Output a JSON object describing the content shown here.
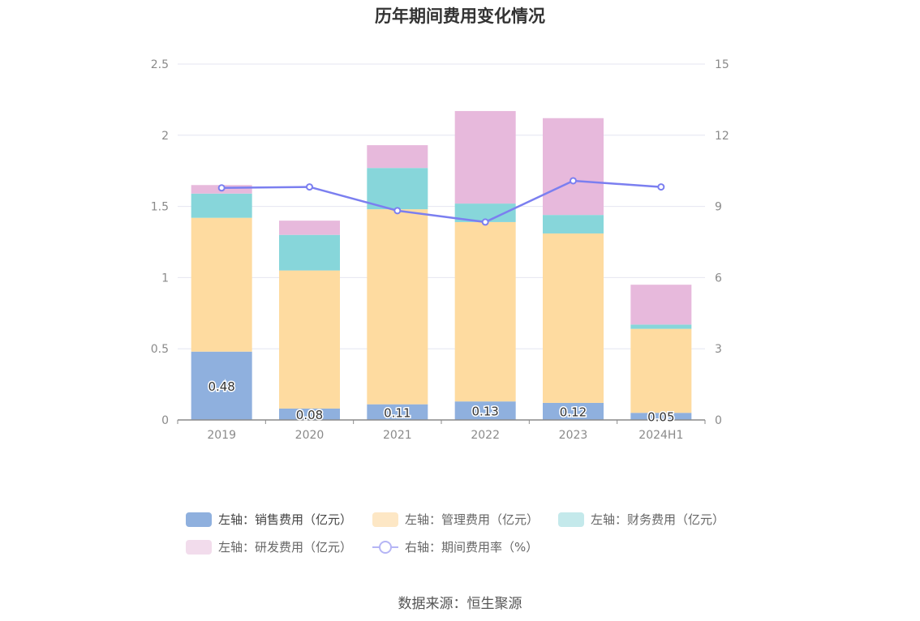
{
  "title": "历年期间费用变化情况",
  "source": "数据来源：恒生聚源",
  "chart_data": {
    "type": "bar",
    "stacked": true,
    "categories": [
      "2019",
      "2020",
      "2021",
      "2022",
      "2023",
      "2024H1"
    ],
    "left_axis": {
      "ylim": [
        0,
        2.5
      ],
      "ticks": [
        "0",
        "0.5",
        "1",
        "1.5",
        "2",
        "2.5"
      ]
    },
    "right_axis": {
      "ylim": [
        0,
        15
      ],
      "ticks": [
        "0",
        "3",
        "6",
        "9",
        "12",
        "15"
      ]
    },
    "grid": true,
    "legend_position": "bottom",
    "series": [
      {
        "name": "左轴：销售费用（亿元）",
        "type": "bar",
        "color": "#8fb0de",
        "values": [
          0.48,
          0.08,
          0.11,
          0.13,
          0.12,
          0.05
        ],
        "labels": [
          "0.48",
          "0.08",
          "0.11",
          "0.13",
          "0.12",
          "0.05"
        ]
      },
      {
        "name": "左轴：管理费用（亿元）",
        "type": "bar",
        "color": "#fedba0",
        "values": [
          0.94,
          0.97,
          1.37,
          1.26,
          1.19,
          0.59
        ]
      },
      {
        "name": "左轴：财务费用（亿元）",
        "type": "bar",
        "color": "#87d6da",
        "values": [
          0.17,
          0.25,
          0.29,
          0.13,
          0.13,
          0.03
        ]
      },
      {
        "name": "左轴：研发费用（亿元）",
        "type": "bar",
        "color": "#e7b9dc",
        "values": [
          0.06,
          0.1,
          0.16,
          0.65,
          0.68,
          0.28
        ]
      },
      {
        "name": "右轴：期间费用率（%）",
        "type": "line",
        "axis": "right",
        "color": "#7b7ff0",
        "values": [
          9.78,
          9.82,
          8.82,
          8.34,
          10.08,
          9.82
        ]
      }
    ]
  },
  "legend": {
    "legend_colors": [
      "#8fb0de",
      "#fde7c5",
      "#c4e9eb",
      "#f2dcec"
    ]
  }
}
